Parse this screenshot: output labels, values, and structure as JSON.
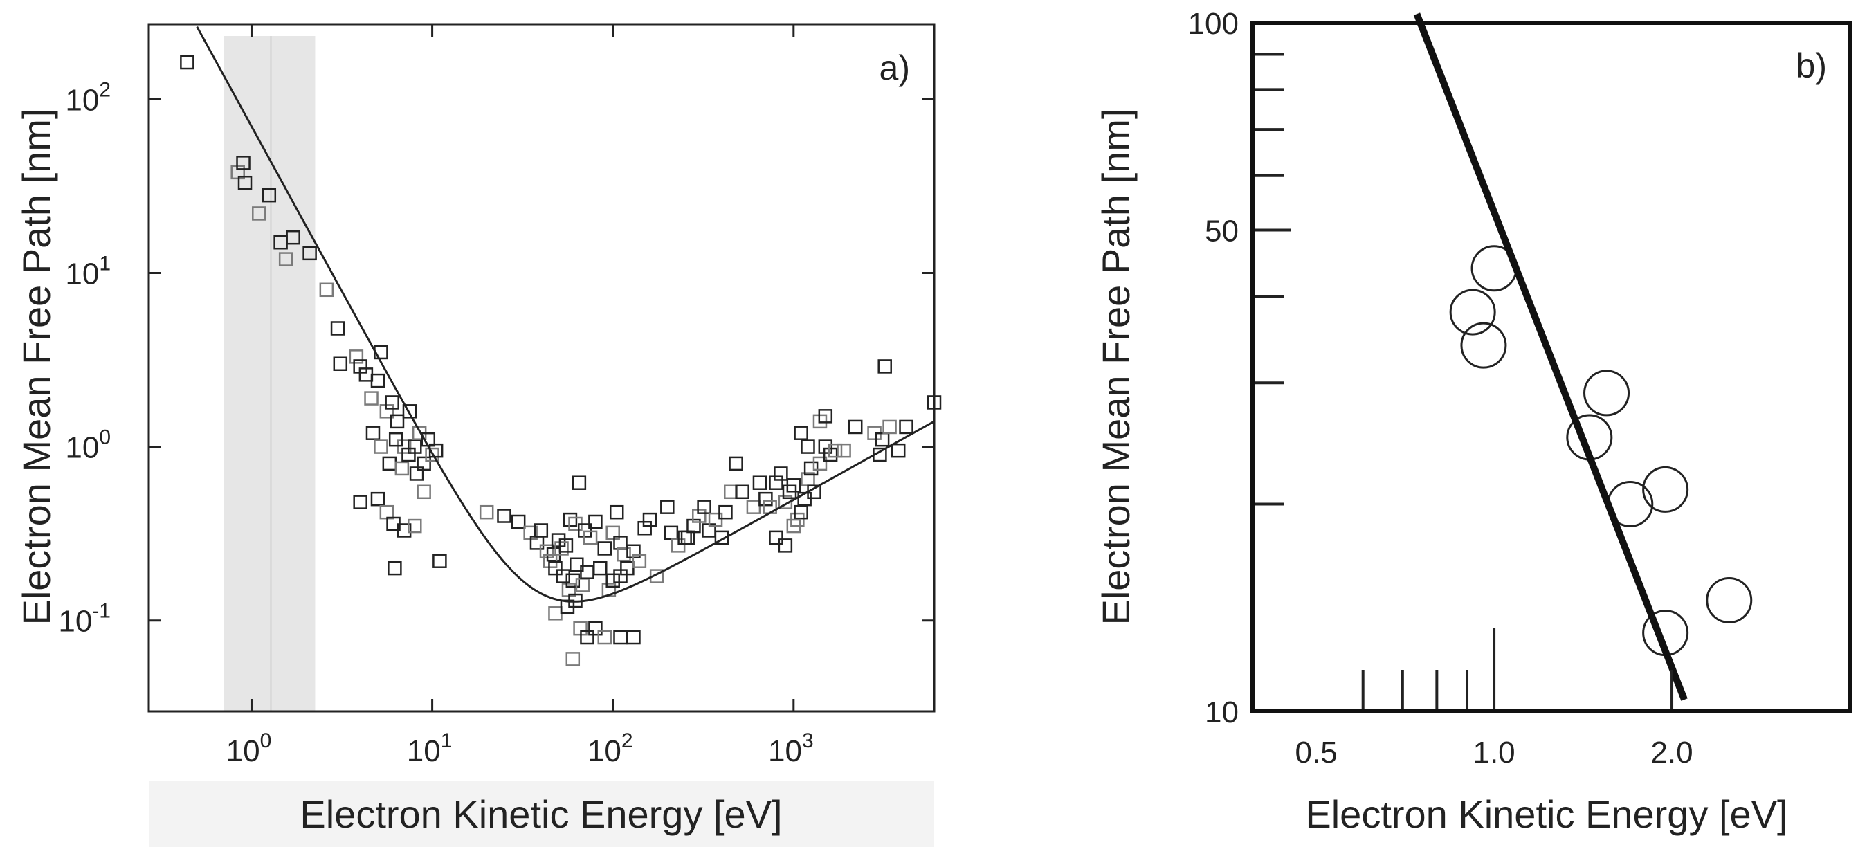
{
  "colors": {
    "ink": "#222222",
    "shade": "#e6e6e6",
    "shade_line": "#cfcfcf",
    "marker_light": "#7a7a7a"
  },
  "chart_data": [
    {
      "id": "panel-a",
      "type": "scatter",
      "panel_label": "a)",
      "title": "",
      "xlabel": "Electron Kinetic Energy [eV]",
      "ylabel": "Electron Mean Free Path [nm]",
      "xscale": "log",
      "yscale": "log",
      "xlim": [
        0.27,
        6000
      ],
      "ylim": [
        0.03,
        270
      ],
      "grid": false,
      "xticks": [
        {
          "v": 1,
          "base": "10",
          "exp": "0"
        },
        {
          "v": 10,
          "base": "10",
          "exp": "1"
        },
        {
          "v": 100,
          "base": "10",
          "exp": "2"
        },
        {
          "v": 1000,
          "base": "10",
          "exp": "3"
        }
      ],
      "yticks": [
        {
          "v": 0.1,
          "base": "10",
          "exp": "-1"
        },
        {
          "v": 1,
          "base": "10",
          "exp": "0"
        },
        {
          "v": 10,
          "base": "10",
          "exp": "1"
        },
        {
          "v": 100,
          "base": "10",
          "exp": "2"
        }
      ],
      "shaded_region": {
        "x": [
          0.7,
          2.25
        ],
        "divider": 1.28
      },
      "marker": "square",
      "points": [
        [
          0.44,
          163
        ],
        [
          0.84,
          38
        ],
        [
          0.9,
          43
        ],
        [
          0.92,
          33
        ],
        [
          1.1,
          22
        ],
        [
          1.25,
          28
        ],
        [
          1.45,
          15
        ],
        [
          1.55,
          12
        ],
        [
          1.7,
          16
        ],
        [
          2.1,
          13
        ],
        [
          2.6,
          8
        ],
        [
          3.0,
          4.8
        ],
        [
          3.1,
          3.0
        ],
        [
          3.8,
          3.3
        ],
        [
          4.0,
          2.9
        ],
        [
          4.3,
          2.6
        ],
        [
          4.6,
          1.9
        ],
        [
          5.0,
          2.4
        ],
        [
          5.2,
          3.5
        ],
        [
          5.6,
          1.6
        ],
        [
          6.0,
          1.8
        ],
        [
          6.4,
          1.4
        ],
        [
          7.0,
          1.0
        ],
        [
          7.5,
          1.6
        ],
        [
          8.0,
          1.0
        ],
        [
          8.5,
          1.2
        ],
        [
          9.0,
          0.8
        ],
        [
          9.5,
          1.1
        ],
        [
          10,
          0.9
        ],
        [
          10.5,
          0.95
        ],
        [
          4.7,
          1.2
        ],
        [
          5.2,
          1.0
        ],
        [
          5.8,
          0.8
        ],
        [
          6.3,
          1.1
        ],
        [
          6.8,
          0.75
        ],
        [
          7.4,
          0.9
        ],
        [
          8.2,
          0.7
        ],
        [
          9.0,
          0.55
        ],
        [
          4.0,
          0.48
        ],
        [
          5.0,
          0.5
        ],
        [
          5.6,
          0.42
        ],
        [
          6.1,
          0.36
        ],
        [
          7.0,
          0.33
        ],
        [
          8.0,
          0.35
        ],
        [
          6.2,
          0.2
        ],
        [
          11,
          0.22
        ],
        [
          20,
          0.42
        ],
        [
          25,
          0.4
        ],
        [
          30,
          0.37
        ],
        [
          35,
          0.32
        ],
        [
          38,
          0.28
        ],
        [
          40,
          0.33
        ],
        [
          43,
          0.25
        ],
        [
          47,
          0.24
        ],
        [
          50,
          0.29
        ],
        [
          52,
          0.26
        ],
        [
          55,
          0.27
        ],
        [
          58,
          0.38
        ],
        [
          62,
          0.36
        ],
        [
          65,
          0.62
        ],
        [
          70,
          0.33
        ],
        [
          75,
          0.3
        ],
        [
          80,
          0.37
        ],
        [
          90,
          0.26
        ],
        [
          100,
          0.32
        ],
        [
          105,
          0.42
        ],
        [
          110,
          0.28
        ],
        [
          115,
          0.24
        ],
        [
          120,
          0.2
        ],
        [
          130,
          0.25
        ],
        [
          140,
          0.22
        ],
        [
          150,
          0.34
        ],
        [
          160,
          0.38
        ],
        [
          45,
          0.22
        ],
        [
          48,
          0.2
        ],
        [
          53,
          0.18
        ],
        [
          57,
          0.15
        ],
        [
          60,
          0.17
        ],
        [
          63,
          0.21
        ],
        [
          68,
          0.16
        ],
        [
          72,
          0.19
        ],
        [
          85,
          0.2
        ],
        [
          95,
          0.15
        ],
        [
          100,
          0.17
        ],
        [
          110,
          0.18
        ],
        [
          48,
          0.11
        ],
        [
          56,
          0.12
        ],
        [
          62,
          0.13
        ],
        [
          66,
          0.09
        ],
        [
          72,
          0.08
        ],
        [
          80,
          0.09
        ],
        [
          90,
          0.08
        ],
        [
          110,
          0.08
        ],
        [
          130,
          0.08
        ],
        [
          60,
          0.06
        ],
        [
          200,
          0.45
        ],
        [
          210,
          0.32
        ],
        [
          230,
          0.27
        ],
        [
          250,
          0.3
        ],
        [
          280,
          0.35
        ],
        [
          300,
          0.4
        ],
        [
          320,
          0.45
        ],
        [
          340,
          0.33
        ],
        [
          370,
          0.38
        ],
        [
          400,
          0.3
        ],
        [
          420,
          0.42
        ],
        [
          450,
          0.55
        ],
        [
          480,
          0.8
        ],
        [
          520,
          0.55
        ],
        [
          600,
          0.45
        ],
        [
          650,
          0.62
        ],
        [
          700,
          0.5
        ],
        [
          740,
          0.45
        ],
        [
          800,
          0.62
        ],
        [
          850,
          0.7
        ],
        [
          900,
          0.48
        ],
        [
          950,
          0.55
        ],
        [
          1000,
          0.6
        ],
        [
          1050,
          0.38
        ],
        [
          1100,
          0.42
        ],
        [
          1150,
          0.5
        ],
        [
          1200,
          0.65
        ],
        [
          1250,
          0.75
        ],
        [
          1300,
          0.55
        ],
        [
          1400,
          0.8
        ],
        [
          1500,
          1.0
        ],
        [
          1600,
          0.9
        ],
        [
          1700,
          0.95
        ],
        [
          800,
          0.3
        ],
        [
          900,
          0.27
        ],
        [
          1000,
          0.35
        ],
        [
          1100,
          1.2
        ],
        [
          1200,
          1.0
        ],
        [
          1400,
          1.4
        ],
        [
          1500,
          1.5
        ],
        [
          2200,
          1.3
        ],
        [
          2800,
          1.2
        ],
        [
          3100,
          1.1
        ],
        [
          3200,
          2.9
        ],
        [
          3400,
          1.3
        ],
        [
          3800,
          0.95
        ],
        [
          4200,
          1.3
        ],
        [
          1900,
          0.95
        ],
        [
          3000,
          0.9
        ],
        [
          6000,
          1.8
        ],
        [
          175,
          0.18
        ],
        [
          260,
          0.3
        ]
      ],
      "fit_curve": {
        "type": "universal curve",
        "minimum_x": 37,
        "minimum_y": 0.15
      }
    },
    {
      "id": "panel-b",
      "type": "scatter",
      "panel_label": "b)",
      "title": "",
      "xlabel": "Electron Kinetic Energy [eV]",
      "ylabel": "Electron Mean Free Path [nm]",
      "xscale": "log",
      "yscale": "log",
      "xlim": [
        0.39,
        4.0
      ],
      "ylim": [
        10,
        100
      ],
      "grid": false,
      "xticks": [
        {
          "v": 0.5,
          "label": "0.5"
        },
        {
          "v": 1.0,
          "label": "1.0"
        },
        {
          "v": 2.0,
          "label": "2.0"
        }
      ],
      "yticks": [
        {
          "v": 10,
          "label": "10"
        },
        {
          "v": 50,
          "label": "50"
        },
        {
          "v": 100,
          "label": "100"
        }
      ],
      "minor_yticks": [
        20,
        30,
        40,
        60,
        70,
        80,
        90
      ],
      "minor_xticks": [
        0.6,
        0.7,
        0.8,
        0.9,
        1.0,
        2.0
      ],
      "marker": "circle",
      "points": [
        [
          0.96,
          34
        ],
        [
          0.92,
          38
        ],
        [
          1.0,
          44
        ],
        [
          1.55,
          29
        ],
        [
          1.45,
          25
        ],
        [
          1.7,
          20
        ],
        [
          1.95,
          21
        ],
        [
          1.95,
          13
        ],
        [
          2.5,
          14.5
        ]
      ],
      "fit_line": [
        [
          0.74,
          103
        ],
        [
          2.1,
          10.4
        ]
      ]
    }
  ]
}
